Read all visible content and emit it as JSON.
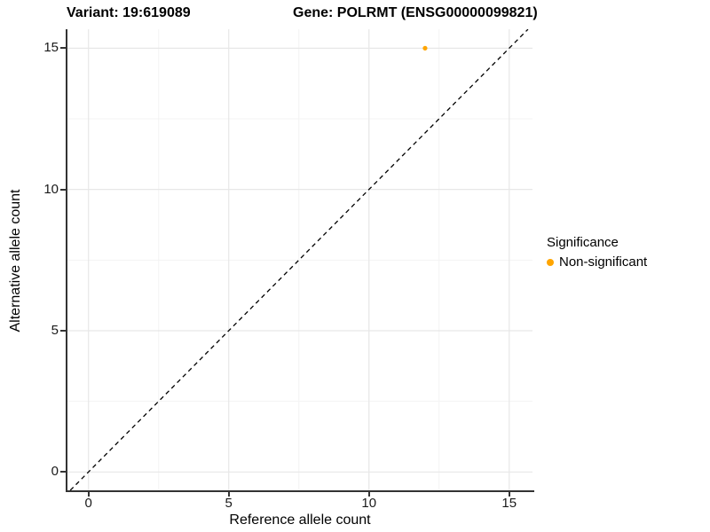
{
  "titles": {
    "variant": "Variant: 19:619089",
    "gene": "Gene: POLRMT (ENSG00000099821)"
  },
  "axes": {
    "x_label": "Reference allele count",
    "y_label": "Alternative allele count",
    "x_major_ticks": [
      0,
      5,
      10,
      15
    ],
    "y_major_ticks": [
      0,
      5,
      10,
      15
    ],
    "x_minor_ticks": [
      2.5,
      7.5,
      12.5
    ],
    "y_minor_ticks": [
      2.5,
      7.5,
      12.5
    ]
  },
  "legend": {
    "title": "Significance",
    "items": [
      {
        "label": "Non-significant",
        "color": "#FFA500"
      }
    ]
  },
  "chart_data": {
    "type": "scatter",
    "title": "Variant: 19:619089   Gene: POLRMT (ENSG00000099821)",
    "xlabel": "Reference allele count",
    "ylabel": "Alternative allele count",
    "xlim": [
      -0.75,
      15.83
    ],
    "ylim": [
      -0.65,
      15.67
    ],
    "grid": "on",
    "legend_position": "right",
    "series": [
      {
        "name": "Non-significant",
        "color": "#FFA500",
        "points": [
          {
            "x": 12,
            "y": 15
          }
        ]
      }
    ],
    "reference_line": {
      "type": "identity",
      "equation": "y = x",
      "style": "dashed",
      "color": "#000000"
    }
  },
  "colors": {
    "axis_line": "#333333",
    "grid_major": "#e7e7e7",
    "grid_minor": "#f3f3f3",
    "point": "#FFA500",
    "background": "#ffffff"
  }
}
